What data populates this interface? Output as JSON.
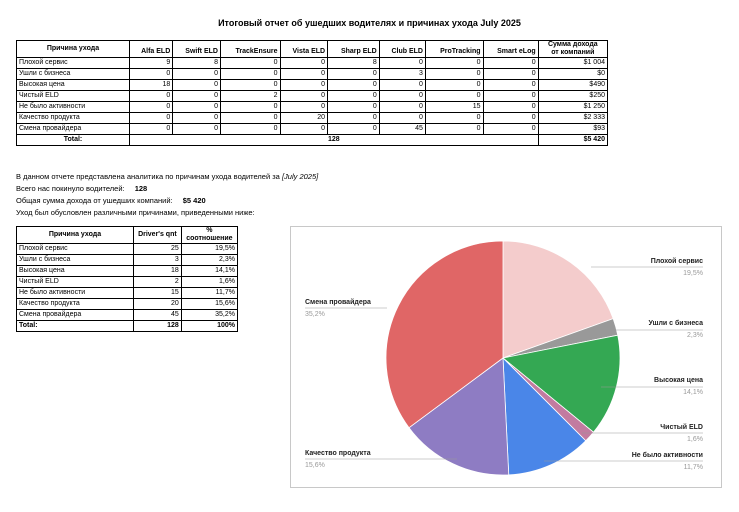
{
  "title": "Итоговый отчет об ушедших водителях и причинах ухода July 2025",
  "main_table": {
    "reason_header": "Причина ухода",
    "columns": [
      "Alfa ELD",
      "Swift ELD",
      "TrackEnsure",
      "Vista ELD",
      "Sharp ELD",
      "Club ELD",
      "ProTracking",
      "Smart eLog"
    ],
    "sum_header_1": "Сумма дохода",
    "sum_header_2": "от компаний",
    "rows": [
      {
        "reason": "Плохой сервис",
        "values": [
          "9",
          "8",
          "0",
          "0",
          "8",
          "0",
          "0",
          "0"
        ],
        "sum": "$1 004"
      },
      {
        "reason": "Ушли с бизнеса",
        "values": [
          "0",
          "0",
          "0",
          "0",
          "0",
          "3",
          "0",
          "0"
        ],
        "sum": "$0"
      },
      {
        "reason": "Высокая цена",
        "values": [
          "18",
          "0",
          "0",
          "0",
          "0",
          "0",
          "0",
          "0"
        ],
        "sum": "$490"
      },
      {
        "reason": "Чистый ELD",
        "values": [
          "0",
          "0",
          "2",
          "0",
          "0",
          "0",
          "0",
          "0"
        ],
        "sum": "$250"
      },
      {
        "reason": "Не было активности",
        "values": [
          "0",
          "0",
          "0",
          "0",
          "0",
          "0",
          "15",
          "0"
        ],
        "sum": "$1 250"
      },
      {
        "reason": "Качество продукта",
        "values": [
          "0",
          "0",
          "0",
          "20",
          "0",
          "0",
          "0",
          "0"
        ],
        "sum": "$2 333"
      },
      {
        "reason": "Смена провайдера",
        "values": [
          "0",
          "0",
          "0",
          "0",
          "0",
          "45",
          "0",
          "0"
        ],
        "sum": "$93"
      }
    ],
    "total_label": "Total:",
    "total_count": "128",
    "total_sum": "$5 420"
  },
  "summary": {
    "line1_prefix": "В данном отчете представлена аналитика по причинам ухода водителей за",
    "line1_period": "[July 2025]",
    "line2_label": "Всего нас покинуло водителей:",
    "line2_value": "128",
    "line3_label": "Общая сумма дохода от ушедших компаний:",
    "line3_value": "$5 420",
    "line4": "Уход был обусловлен различными причинами, приведенными ниже:"
  },
  "small_table": {
    "h_reason": "Причина ухода",
    "h_qnt": "Driver's qnt",
    "h_pct_1": "%",
    "h_pct_2": "соотношение",
    "rows": [
      {
        "reason": "Плохой сервис",
        "qnt": "25",
        "pct": "19,5%"
      },
      {
        "reason": "Ушли с бизнеса",
        "qnt": "3",
        "pct": "2,3%"
      },
      {
        "reason": "Высокая цена",
        "qnt": "18",
        "pct": "14,1%"
      },
      {
        "reason": "Чистый ELD",
        "qnt": "2",
        "pct": "1,6%"
      },
      {
        "reason": "Не было активности",
        "qnt": "15",
        "pct": "11,7%"
      },
      {
        "reason": "Качество продукта",
        "qnt": "20",
        "pct": "15,6%"
      },
      {
        "reason": "Смена провайдера",
        "qnt": "45",
        "pct": "35,2%"
      }
    ],
    "total_label": "Total:",
    "total_qnt": "128",
    "total_pct": "100%"
  },
  "chart_data": {
    "type": "pie",
    "slices": [
      {
        "label": "Плохой сервис",
        "value": 25,
        "pct": "19,5%",
        "color": "#f4cccc"
      },
      {
        "label": "Ушли с бизнеса",
        "value": 3,
        "pct": "2,3%",
        "color": "#999999"
      },
      {
        "label": "Высокая цена",
        "value": 18,
        "pct": "14,1%",
        "color": "#34a853"
      },
      {
        "label": "Чистый ELD",
        "value": 2,
        "pct": "1,6%",
        "color": "#c27ba0"
      },
      {
        "label": "Не было активности",
        "value": 15,
        "pct": "11,7%",
        "color": "#4a86e8"
      },
      {
        "label": "Качество продукта",
        "value": 20,
        "pct": "15,6%",
        "color": "#8e7cc3"
      },
      {
        "label": "Смена провайдера",
        "value": 45,
        "pct": "35,2%",
        "color": "#e06666"
      }
    ]
  }
}
